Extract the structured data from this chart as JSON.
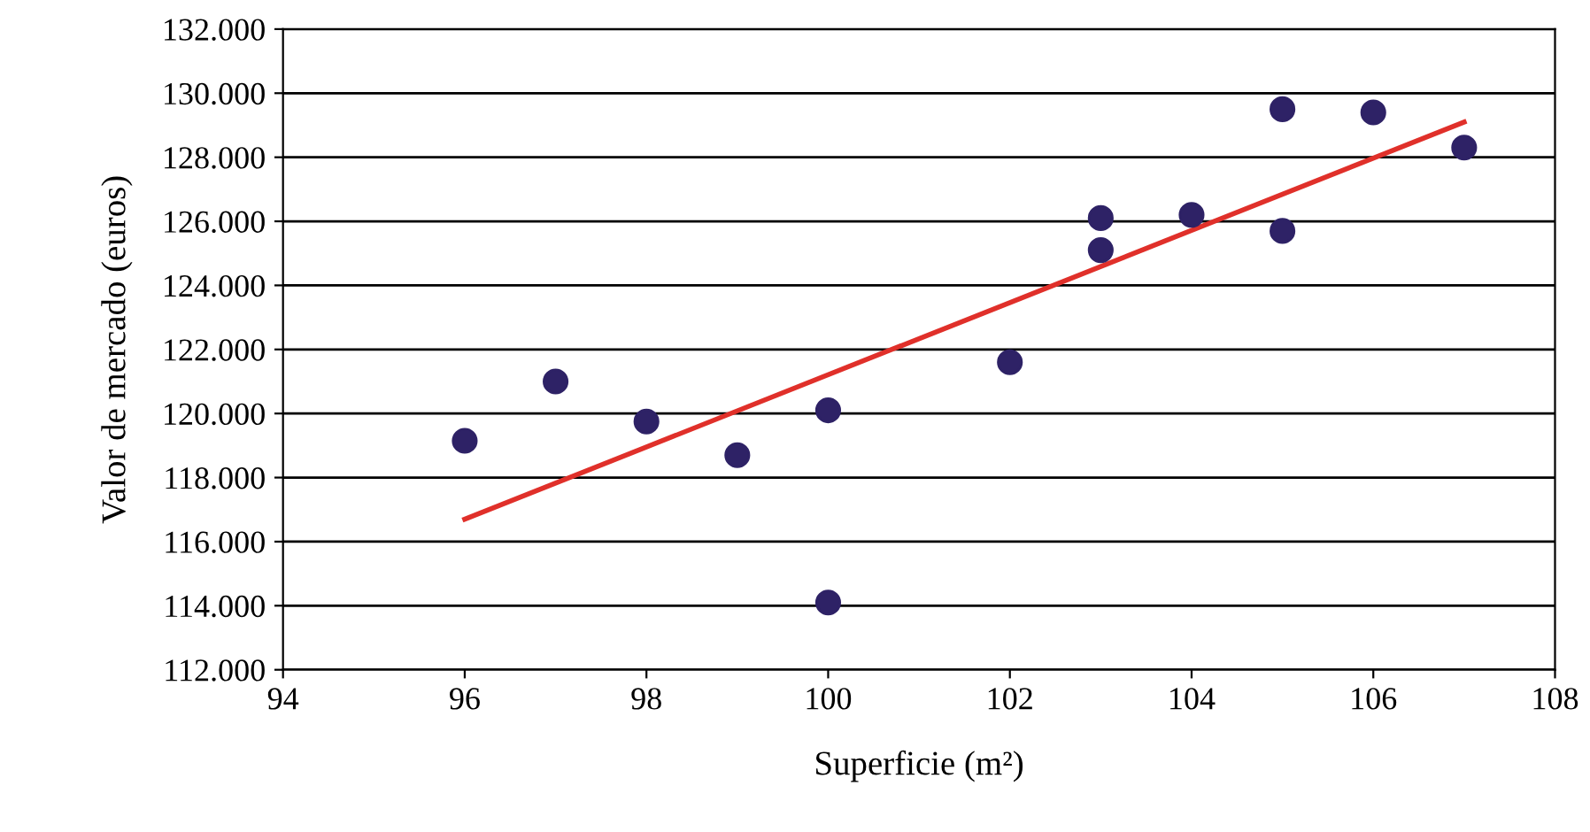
{
  "chart_data": {
    "type": "scatter",
    "xlabel": "Superficie (m²)",
    "ylabel": "Valor de mercado (euros)",
    "xlim": [
      94,
      108
    ],
    "xticks": [
      94,
      96,
      98,
      100,
      102,
      104,
      106,
      108
    ],
    "ylim": [
      112000,
      132000
    ],
    "yticks": [
      {
        "value": 112000,
        "label": "112.000"
      },
      {
        "value": 114000,
        "label": "114.000"
      },
      {
        "value": 116000,
        "label": "116.000"
      },
      {
        "value": 118000,
        "label": "118.000"
      },
      {
        "value": 120000,
        "label": "120.000"
      },
      {
        "value": 122000,
        "label": "122.000"
      },
      {
        "value": 124000,
        "label": "124.000"
      },
      {
        "value": 126000,
        "label": "126.000"
      },
      {
        "value": 128000,
        "label": "128.000"
      },
      {
        "value": 130000,
        "label": "130.000"
      },
      {
        "value": 132000,
        "label": "132.000"
      }
    ],
    "grid": "y",
    "series": [
      {
        "marker": "circle",
        "color": "#2e2266",
        "x": [
          96,
          97,
          98,
          99,
          100,
          100,
          102,
          103,
          103,
          104,
          105,
          105,
          106,
          107
        ],
        "values": [
          119150,
          121000,
          119750,
          118700,
          120100,
          114100,
          121600,
          126100,
          125100,
          126200,
          129500,
          125700,
          129400,
          128300
        ]
      },
      {
        "type": "line",
        "color": "#e0302a",
        "x": [
          96,
          107
        ],
        "values": [
          116700,
          129100
        ]
      }
    ]
  }
}
